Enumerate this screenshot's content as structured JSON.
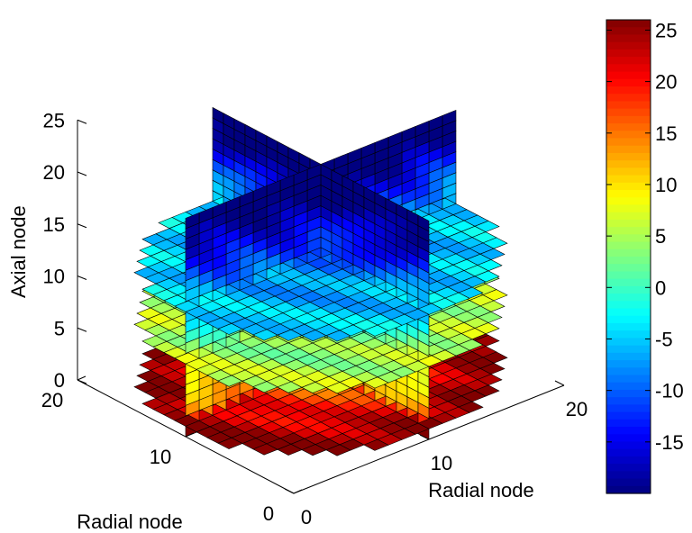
{
  "chart_data": {
    "type": "slice",
    "title": "",
    "xlabel": "Radial node",
    "ylabel": "Radial node",
    "zlabel": "Axial node",
    "xlim": [
      0,
      20
    ],
    "ylim": [
      0,
      20
    ],
    "zlim": [
      0,
      25
    ],
    "x_ticks": [
      "0",
      "10",
      "20"
    ],
    "y_ticks": [
      "0",
      "10",
      "20"
    ],
    "z_ticks": [
      "0",
      "5",
      "10",
      "15",
      "20",
      "25"
    ],
    "slices": {
      "vertical_x_at": 10,
      "vertical_y_at": 10,
      "horizontal_z_at": [
        1,
        7,
        12
      ]
    },
    "grid_size": [
      20,
      20,
      21
    ],
    "value_range": [
      -20,
      26
    ],
    "colormap": "jet",
    "colorbar": {
      "ticks": [
        "25",
        "20",
        "15",
        "10",
        "5",
        "0",
        "-5",
        "-10",
        "-15"
      ],
      "range": [
        -20,
        26
      ]
    }
  }
}
